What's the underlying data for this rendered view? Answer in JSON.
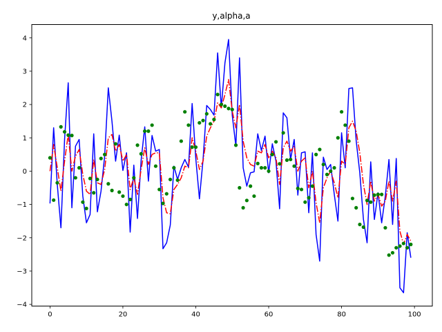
{
  "chart_data": {
    "type": "line",
    "title": "y,alpha,a",
    "xlabel": "",
    "ylabel": "",
    "xlim": [
      -5,
      104.9
    ],
    "ylim": [
      -4.05,
      4.4
    ],
    "xticks": [
      0,
      20,
      40,
      60,
      80,
      100
    ],
    "yticks": [
      -4,
      -3,
      -2,
      -1,
      0,
      1,
      2,
      3,
      4
    ],
    "grid": false,
    "legend": "none",
    "series": [
      {
        "style": "solid-line",
        "color": "#0000ff",
        "x": [
          0,
          1,
          2,
          3,
          4,
          5,
          6,
          7,
          8,
          9,
          10,
          11,
          12,
          13,
          14,
          15,
          16,
          17,
          18,
          19,
          20,
          21,
          22,
          23,
          24,
          25,
          26,
          27,
          28,
          29,
          30,
          31,
          32,
          33,
          34,
          35,
          36,
          37,
          38,
          39,
          40,
          41,
          42,
          43,
          44,
          45,
          46,
          47,
          48,
          49,
          50,
          51,
          52,
          53,
          54,
          55,
          56,
          57,
          58,
          59,
          60,
          61,
          62,
          63,
          64,
          65,
          66,
          67,
          68,
          69,
          70,
          71,
          72,
          73,
          74,
          75,
          76,
          77,
          78,
          79,
          80,
          81,
          82,
          83,
          84,
          85,
          86,
          87,
          88,
          89,
          90,
          91,
          92,
          93,
          94,
          95,
          96,
          97,
          98,
          99
        ],
        "y": [
          -0.97,
          1.3,
          -0.4,
          -1.7,
          0.95,
          2.65,
          -1.1,
          0.75,
          0.95,
          -0.75,
          -1.55,
          -1.3,
          1.12,
          -1.22,
          -0.6,
          0.45,
          2.5,
          1.5,
          0.3,
          1.08,
          0.02,
          0.55,
          -1.83,
          0.18,
          -1.42,
          0.32,
          1.33,
          -0.3,
          1.07,
          0.6,
          0.65,
          -2.33,
          -2.15,
          -1.62,
          0.15,
          -0.25,
          0.1,
          0.35,
          0.12,
          2.03,
          0.38,
          -0.83,
          0.35,
          1.97,
          1.85,
          1.68,
          3.55,
          1.9,
          3.25,
          3.95,
          1.68,
          0.75,
          3.4,
          0.1,
          -0.45,
          -0.05,
          -0.02,
          1.12,
          0.62,
          1.05,
          -0.05,
          0.82,
          0.3,
          -1.13,
          1.75,
          1.6,
          0.35,
          0.95,
          -0.72,
          0.55,
          0.58,
          -1.25,
          0.55,
          -1.9,
          -2.7,
          0.42,
          0.05,
          0.2,
          -0.7,
          -1.5,
          1.15,
          0.1,
          2.48,
          2.5,
          0.92,
          -0.05,
          -1.45,
          -2.15,
          0.28,
          -1.45,
          -0.65,
          -1.55,
          -0.75,
          0.35,
          -1.6,
          0.38,
          -3.5,
          -3.65,
          -1.85,
          -2.6
        ]
      },
      {
        "style": "dash-dot-line",
        "color": "#ff0000",
        "x": [
          0,
          1,
          2,
          3,
          4,
          5,
          6,
          7,
          8,
          9,
          10,
          11,
          12,
          13,
          14,
          15,
          16,
          17,
          18,
          19,
          20,
          21,
          22,
          23,
          24,
          25,
          26,
          27,
          28,
          29,
          30,
          31,
          32,
          33,
          34,
          35,
          36,
          37,
          38,
          39,
          40,
          41,
          42,
          43,
          44,
          45,
          46,
          47,
          48,
          49,
          50,
          51,
          52,
          53,
          54,
          55,
          56,
          57,
          58,
          59,
          60,
          61,
          62,
          63,
          64,
          65,
          66,
          67,
          68,
          69,
          70,
          71,
          72,
          73,
          74,
          75,
          76,
          77,
          78,
          79,
          80,
          81,
          82,
          83,
          84,
          85,
          86,
          87,
          88,
          89,
          90,
          91,
          92,
          93,
          94,
          95,
          96,
          97,
          98,
          99
        ],
        "y": [
          0.0,
          0.8,
          0.1,
          -0.6,
          0.3,
          1.1,
          0.0,
          0.45,
          0.65,
          -0.1,
          -0.6,
          -0.7,
          0.35,
          -0.35,
          -0.4,
          0.05,
          1.0,
          1.1,
          0.6,
          0.8,
          0.3,
          0.5,
          -0.55,
          -0.2,
          -0.7,
          0.05,
          0.7,
          0.2,
          0.5,
          0.55,
          0.55,
          -0.8,
          -1.25,
          -1.28,
          -0.55,
          -0.4,
          -0.2,
          0.15,
          0.1,
          1.0,
          0.6,
          0.05,
          0.3,
          1.05,
          1.3,
          1.5,
          2.05,
          1.9,
          2.3,
          2.75,
          1.8,
          1.3,
          2.0,
          0.9,
          0.4,
          0.2,
          0.15,
          0.6,
          0.55,
          0.8,
          0.4,
          0.6,
          0.4,
          -0.4,
          0.7,
          0.9,
          0.6,
          0.75,
          0.0,
          0.3,
          0.4,
          -0.5,
          0.0,
          -0.95,
          -1.55,
          -0.5,
          -0.2,
          0.0,
          -0.35,
          -0.8,
          0.3,
          0.2,
          1.3,
          1.5,
          1.2,
          0.55,
          -0.4,
          -1.0,
          -0.3,
          -0.9,
          -0.7,
          -1.05,
          -0.9,
          -0.3,
          -0.9,
          -0.3,
          -1.8,
          -2.2,
          -1.9,
          -2.1
        ]
      },
      {
        "style": "points",
        "color": "#008000",
        "x": [
          0,
          1,
          2,
          3,
          4,
          5,
          6,
          7,
          8,
          9,
          10,
          11,
          12,
          13,
          14,
          15,
          16,
          17,
          18,
          19,
          20,
          21,
          22,
          23,
          24,
          25,
          26,
          27,
          28,
          29,
          30,
          31,
          32,
          33,
          34,
          35,
          36,
          37,
          38,
          39,
          40,
          41,
          42,
          43,
          44,
          45,
          46,
          47,
          48,
          49,
          50,
          51,
          52,
          53,
          54,
          55,
          56,
          57,
          58,
          59,
          60,
          61,
          62,
          63,
          64,
          65,
          66,
          67,
          68,
          69,
          70,
          71,
          72,
          73,
          74,
          75,
          76,
          77,
          78,
          79,
          80,
          81,
          82,
          83,
          84,
          85,
          86,
          87,
          88,
          89,
          90,
          91,
          92,
          93,
          94,
          95,
          96,
          97,
          98,
          99
        ],
        "y": [
          0.4,
          -0.87,
          -0.35,
          1.33,
          1.18,
          1.08,
          1.07,
          -0.2,
          0.1,
          -0.93,
          -1.12,
          -0.22,
          -0.65,
          -0.25,
          0.38,
          0.5,
          -0.38,
          -0.58,
          0.82,
          -0.63,
          -0.75,
          -1.0,
          -0.85,
          -0.2,
          0.78,
          0.52,
          1.2,
          1.2,
          1.38,
          0.15,
          -0.55,
          -0.97,
          -0.68,
          -0.25,
          0.1,
          -0.27,
          0.9,
          1.78,
          1.38,
          0.72,
          0.72,
          1.45,
          1.52,
          1.72,
          1.42,
          1.55,
          2.3,
          2.0,
          1.95,
          1.88,
          1.85,
          0.78,
          -0.5,
          -1.1,
          -0.88,
          -0.45,
          -0.75,
          0.23,
          0.1,
          0.1,
          0.0,
          0.5,
          0.88,
          0.22,
          1.15,
          0.33,
          0.35,
          0.15,
          -0.52,
          -0.55,
          -0.93,
          -0.8,
          -0.45,
          0.5,
          0.65,
          0.2,
          -0.1,
          0.0,
          0.1,
          1.0,
          1.78,
          1.38,
          0.9,
          -0.82,
          -1.1,
          -1.6,
          -1.68,
          -0.88,
          -0.93,
          -0.72,
          -0.7,
          -0.7,
          -1.7,
          -2.52,
          -2.45,
          -2.3,
          -2.25,
          -2.17,
          -2.3,
          -2.2
        ]
      }
    ]
  }
}
